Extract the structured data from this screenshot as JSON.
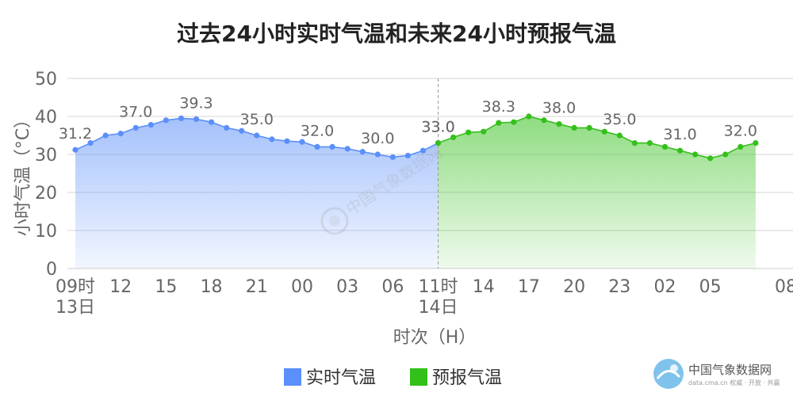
{
  "chart_data": {
    "type": "area",
    "title": "过去24小时实时气温和未来24小时预报气温",
    "xlabel": "时次（H）",
    "ylabel": "小时气温（°C）",
    "ylim": [
      0,
      50
    ],
    "yticks": [
      "0",
      "10",
      "20",
      "30",
      "40",
      "50"
    ],
    "grid": true,
    "legend_position": "bottom-center",
    "x_tick_labels": [
      "09时",
      "12",
      "15",
      "18",
      "21",
      "00",
      "03",
      "06",
      "11时",
      "14",
      "17",
      "20",
      "23",
      "02",
      "05",
      "08"
    ],
    "x_tick_index": [
      0,
      3,
      6,
      9,
      12,
      15,
      18,
      21,
      24,
      27,
      30,
      33,
      36,
      39,
      42,
      47
    ],
    "date_labels": [
      {
        "index": 0,
        "text": "13日"
      },
      {
        "index": 24,
        "text": "14日"
      }
    ],
    "series": [
      {
        "name": "实时气温",
        "color": "#5b8ff9",
        "start_index": 0,
        "values": [
          31.2,
          33.0,
          35.0,
          35.5,
          37.0,
          37.8,
          39.0,
          39.5,
          39.3,
          38.5,
          37.0,
          36.2,
          35.0,
          34.0,
          33.5,
          33.3,
          32.0,
          32.0,
          31.5,
          30.7,
          30.0,
          29.3,
          29.7,
          31.0,
          33.0
        ],
        "data_labels": {
          "0": "31.2",
          "4": "37.0",
          "8": "39.3",
          "12": "35.0",
          "16": "32.0",
          "20": "30.0",
          "24": "33.0"
        }
      },
      {
        "name": "预报气温",
        "color": "#33c01a",
        "start_index": 24,
        "values": [
          33.0,
          34.5,
          35.8,
          36.0,
          38.3,
          38.5,
          40.0,
          39.0,
          38.0,
          37.0,
          37.0,
          36.0,
          35.0,
          33.0,
          33.0,
          32.0,
          31.0,
          30.0,
          29.0,
          30.0,
          32.0,
          33.0
        ],
        "data_labels": {
          "0": "33.0",
          "4": "38.3",
          "8": "38.0",
          "12": "35.0",
          "16": "31.0",
          "20": "32.0"
        }
      }
    ],
    "watermark_center": "中国气象数据网",
    "brand": {
      "name": "中国气象数据网",
      "sub": "data.cma.cn 权威 · 开放 · 共赢"
    }
  }
}
